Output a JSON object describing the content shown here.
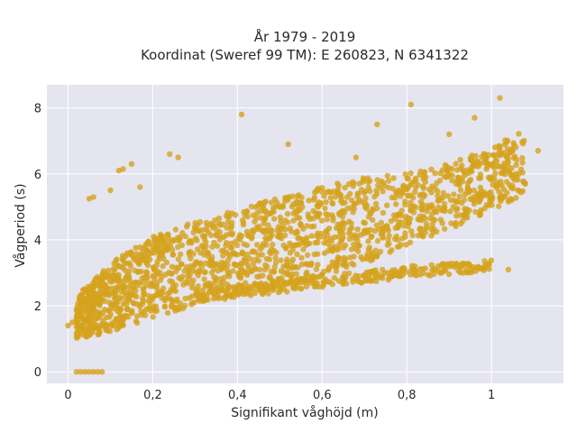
{
  "chart_data": {
    "type": "scatter",
    "title_line1": "År 1979 - 2019",
    "title_line2": "Koordinat (Sweref 99 TM): E 260823, N 6341322",
    "xlabel": "Signifikant våghöjd (m)",
    "ylabel": "Vågperiod (s)",
    "xlim": [
      -0.05,
      1.17
    ],
    "ylim": [
      -0.35,
      8.7
    ],
    "xticks": [
      0,
      0.2,
      0.4,
      0.6,
      0.8,
      1
    ],
    "xtick_labels": [
      "0",
      "0,2",
      "0,4",
      "0,6",
      "0,8",
      "1"
    ],
    "yticks": [
      0,
      2,
      4,
      6,
      8
    ],
    "ytick_labels": [
      "0",
      "2",
      "4",
      "6",
      "8"
    ],
    "grid": true,
    "point_color": "#d4a21d",
    "background_color": "#e5e5f0",
    "main_band": [
      {
        "x": 0.02,
        "y_low": 1.0,
        "y_high": 2.3
      },
      {
        "x": 0.1,
        "y_low": 1.2,
        "y_high": 3.3
      },
      {
        "x": 0.2,
        "y_low": 1.65,
        "y_high": 4.1
      },
      {
        "x": 0.3,
        "y_low": 2.0,
        "y_high": 4.6
      },
      {
        "x": 0.4,
        "y_low": 2.3,
        "y_high": 4.9
      },
      {
        "x": 0.5,
        "y_low": 2.6,
        "y_high": 5.3
      },
      {
        "x": 0.6,
        "y_low": 2.9,
        "y_high": 5.6
      },
      {
        "x": 0.7,
        "y_low": 3.3,
        "y_high": 5.9
      },
      {
        "x": 0.8,
        "y_low": 3.8,
        "y_high": 6.0
      },
      {
        "x": 0.9,
        "y_low": 4.3,
        "y_high": 6.3
      },
      {
        "x": 1.0,
        "y_low": 4.9,
        "y_high": 6.8
      },
      {
        "x": 1.08,
        "y_low": 5.4,
        "y_high": 7.4
      }
    ],
    "lower_band": [
      {
        "x": 0.3,
        "y_low": 2.1,
        "y_high": 2.5
      },
      {
        "x": 0.6,
        "y_low": 2.55,
        "y_high": 2.9
      },
      {
        "x": 0.8,
        "y_low": 2.85,
        "y_high": 3.2
      },
      {
        "x": 1.0,
        "y_low": 3.05,
        "y_high": 3.4
      }
    ],
    "outliers": [
      {
        "x": 0.41,
        "y": 7.8
      },
      {
        "x": 1.02,
        "y": 8.3
      },
      {
        "x": 0.81,
        "y": 8.1
      },
      {
        "x": 0.12,
        "y": 6.1
      },
      {
        "x": 0.15,
        "y": 6.3
      },
      {
        "x": 0.13,
        "y": 6.15
      },
      {
        "x": 0.05,
        "y": 5.25
      },
      {
        "x": 0.06,
        "y": 5.3
      },
      {
        "x": 0.24,
        "y": 6.6
      },
      {
        "x": 0.26,
        "y": 6.5
      },
      {
        "x": 0.17,
        "y": 5.6
      },
      {
        "x": 0.1,
        "y": 5.5
      },
      {
        "x": 0.52,
        "y": 6.9
      },
      {
        "x": 0.73,
        "y": 7.5
      },
      {
        "x": 0.96,
        "y": 7.7
      },
      {
        "x": 0.68,
        "y": 6.5
      },
      {
        "x": 0.9,
        "y": 7.2
      },
      {
        "x": 1.11,
        "y": 6.7
      },
      {
        "x": 1.04,
        "y": 3.1
      },
      {
        "x": 0.01,
        "y": 1.5
      },
      {
        "x": 0.0,
        "y": 1.4
      },
      {
        "x": 0.02,
        "y": 1.6
      }
    ],
    "zero_points": [
      {
        "x": 0.02,
        "y": 0
      },
      {
        "x": 0.03,
        "y": 0
      },
      {
        "x": 0.04,
        "y": 0
      },
      {
        "x": 0.05,
        "y": 0
      },
      {
        "x": 0.06,
        "y": 0
      },
      {
        "x": 0.07,
        "y": 0
      },
      {
        "x": 0.08,
        "y": 0
      }
    ]
  }
}
